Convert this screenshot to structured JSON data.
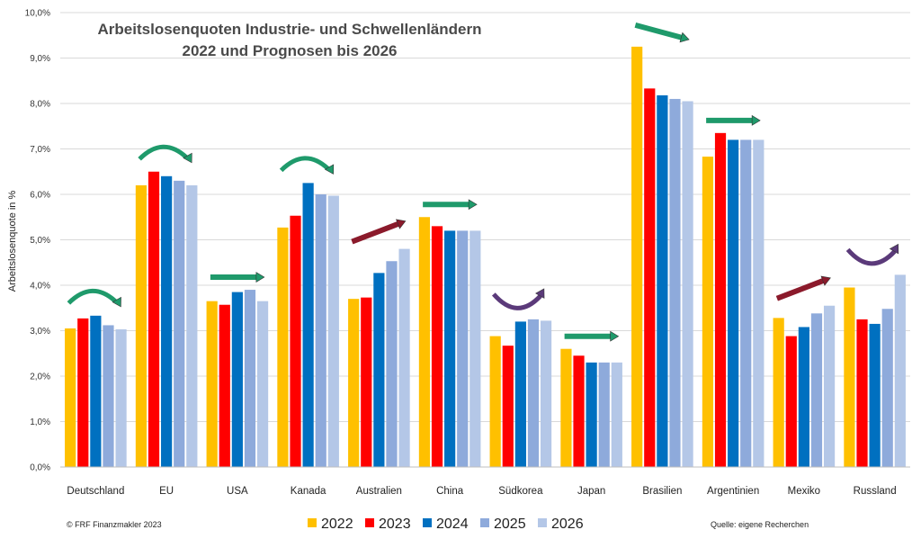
{
  "chart_data": {
    "type": "bar",
    "title_line1": "Arbeitslosenquoten Industrie- und Schwellenländern",
    "title_line2": "2022 und Prognosen bis 2026",
    "xlabel": "",
    "ylabel": "Arbeitslosenquote in %",
    "ylim": [
      0,
      10
    ],
    "yticks": [
      "0,0%",
      "1,0%",
      "2,0%",
      "3,0%",
      "4,0%",
      "5,0%",
      "6,0%",
      "7,0%",
      "8,0%",
      "9,0%",
      "10,0%"
    ],
    "grid": true,
    "legend_position": "bottom-center",
    "categories": [
      "Deutschland",
      "EU",
      "USA",
      "Kanada",
      "Australien",
      "China",
      "Südkorea",
      "Japan",
      "Brasilien",
      "Argentinien",
      "Mexiko",
      "Russland"
    ],
    "series": [
      {
        "name": "2022",
        "color": "#ffc000",
        "values": [
          3.05,
          6.2,
          3.65,
          5.27,
          3.7,
          5.5,
          2.88,
          2.6,
          9.25,
          6.83,
          3.28,
          3.95
        ]
      },
      {
        "name": "2023",
        "color": "#ff0000",
        "values": [
          3.27,
          6.5,
          3.57,
          5.53,
          3.73,
          5.3,
          2.67,
          2.45,
          8.33,
          7.35,
          2.88,
          3.25
        ]
      },
      {
        "name": "2024",
        "color": "#0070c0",
        "values": [
          3.33,
          6.4,
          3.85,
          6.25,
          4.27,
          5.2,
          3.2,
          2.3,
          8.18,
          7.2,
          3.08,
          3.15
        ]
      },
      {
        "name": "2025",
        "color": "#8eaadb",
        "values": [
          3.12,
          6.3,
          3.9,
          6.0,
          4.53,
          5.2,
          3.25,
          2.3,
          8.1,
          7.2,
          3.38,
          3.48
        ]
      },
      {
        "name": "2026",
        "color": "#b4c7e7",
        "values": [
          3.03,
          6.2,
          3.65,
          5.97,
          4.8,
          5.2,
          3.22,
          2.3,
          8.05,
          7.2,
          3.55,
          4.23
        ]
      }
    ],
    "trend_arrows": [
      {
        "category": "Deutschland",
        "kind": "arc",
        "color": "#1f9a6b"
      },
      {
        "category": "EU",
        "kind": "arc",
        "color": "#1f9a6b"
      },
      {
        "category": "USA",
        "kind": "flat",
        "color": "#1f9a6b"
      },
      {
        "category": "Kanada",
        "kind": "arc",
        "color": "#1f9a6b"
      },
      {
        "category": "Australien",
        "kind": "up",
        "color": "#8b1a2b"
      },
      {
        "category": "China",
        "kind": "flat",
        "color": "#1f9a6b"
      },
      {
        "category": "Südkorea",
        "kind": "u-turn",
        "color": "#5b3a7a"
      },
      {
        "category": "Japan",
        "kind": "flat",
        "color": "#1f9a6b"
      },
      {
        "category": "Brasilien",
        "kind": "down",
        "color": "#1f9a6b"
      },
      {
        "category": "Argentinien",
        "kind": "flat",
        "color": "#1f9a6b"
      },
      {
        "category": "Mexiko",
        "kind": "up",
        "color": "#8b1a2b"
      },
      {
        "category": "Russland",
        "kind": "u-turn",
        "color": "#5b3a7a"
      }
    ]
  },
  "footer": {
    "copyright": "© FRF Finanzmakler 2023",
    "source": "Quelle: eigene Recherchen"
  }
}
